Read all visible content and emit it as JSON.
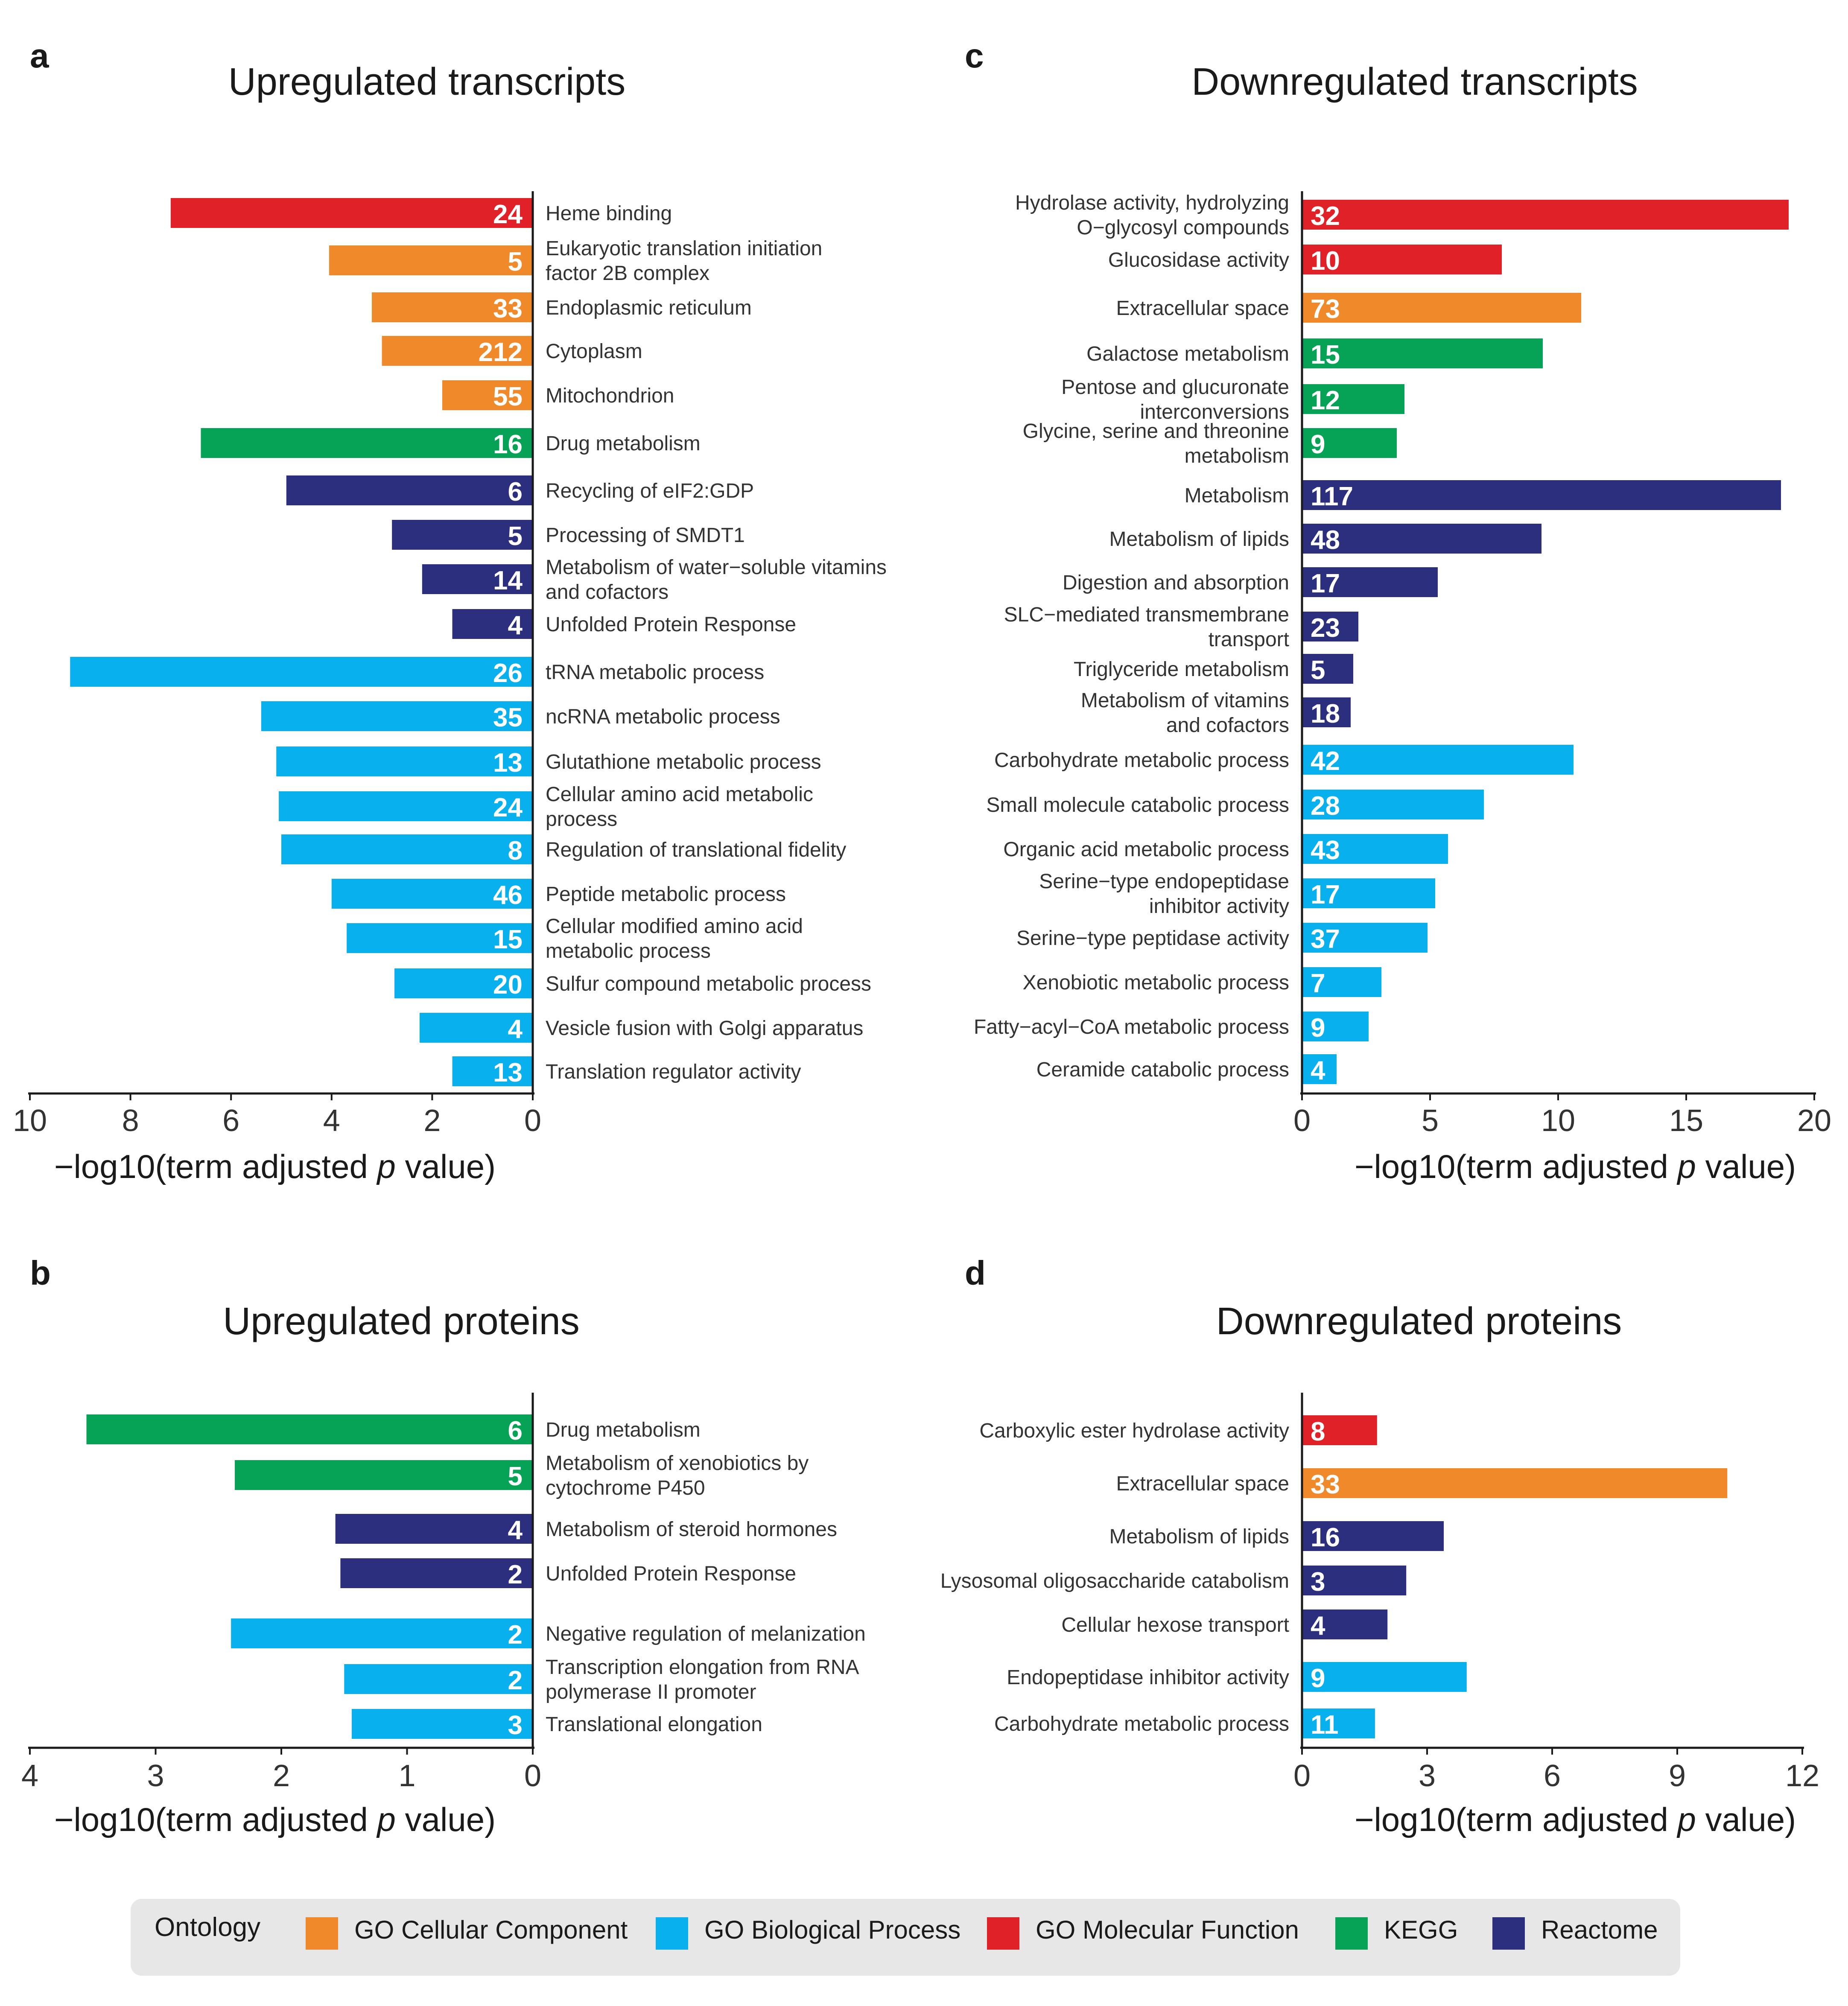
{
  "colors": {
    "GO Cellular Component": "#f0892a",
    "GO Biological Process": "#08b0ed",
    "GO Molecular Function": "#e02128",
    "KEGG": "#06a356",
    "Reactome": "#2c2e7e"
  },
  "legend": {
    "title": "Ontology",
    "items": [
      {
        "label": "GO Cellular Component",
        "color": "#f0892a"
      },
      {
        "label": "GO Biological Process",
        "color": "#08b0ed"
      },
      {
        "label": "GO Molecular Function",
        "color": "#e02128"
      },
      {
        "label": "KEGG",
        "color": "#06a356"
      },
      {
        "label": "Reactome",
        "color": "#2c2e7e"
      }
    ]
  },
  "chart_data": [
    {
      "panel": "a",
      "type": "bar",
      "orientation": "horizontal",
      "direction": "left",
      "title": "Upregulated transcripts",
      "xlabel_prefix": "−log10(term adjusted ",
      "xlabel_italic": "p",
      "xlabel_suffix": " value)",
      "xlim": [
        0,
        10
      ],
      "xticks": [
        10,
        8,
        6,
        4,
        2,
        0
      ],
      "bars": [
        {
          "lines": [
            "Heme binding"
          ],
          "value": 7.2,
          "count": "24",
          "ontology": "GO Molecular Function"
        },
        {
          "lines": [
            "Eukaryotic translation initiation",
            "factor 2B complex"
          ],
          "value": 4.05,
          "count": "5",
          "ontology": "GO Cellular Component"
        },
        {
          "lines": [
            "Endoplasmic reticulum"
          ],
          "value": 3.2,
          "count": "33",
          "ontology": "GO Cellular Component"
        },
        {
          "lines": [
            "Cytoplasm"
          ],
          "value": 3.0,
          "count": "212",
          "ontology": "GO Cellular Component"
        },
        {
          "lines": [
            "Mitochondrion"
          ],
          "value": 1.8,
          "count": "55",
          "ontology": "GO Cellular Component"
        },
        {
          "lines": [
            "Drug metabolism"
          ],
          "value": 6.6,
          "count": "16",
          "ontology": "KEGG"
        },
        {
          "lines": [
            "Recycling of eIF2:GDP"
          ],
          "value": 4.9,
          "count": "6",
          "ontology": "Reactome"
        },
        {
          "lines": [
            "Processing of SMDT1"
          ],
          "value": 2.8,
          "count": "5",
          "ontology": "Reactome"
        },
        {
          "lines": [
            "Metabolism of water−soluble vitamins",
            "and cofactors"
          ],
          "value": 2.2,
          "count": "14",
          "ontology": "Reactome"
        },
        {
          "lines": [
            "Unfolded Protein Response"
          ],
          "value": 1.6,
          "count": "4",
          "ontology": "Reactome"
        },
        {
          "lines": [
            "tRNA metabolic process"
          ],
          "value": 9.2,
          "count": "26",
          "ontology": "GO Biological Process"
        },
        {
          "lines": [
            "ncRNA metabolic process"
          ],
          "value": 5.4,
          "count": "35",
          "ontology": "GO Biological Process"
        },
        {
          "lines": [
            "Glutathione metabolic process"
          ],
          "value": 5.1,
          "count": "13",
          "ontology": "GO Biological Process"
        },
        {
          "lines": [
            "Cellular amino acid metabolic",
            "process"
          ],
          "value": 5.05,
          "count": "24",
          "ontology": "GO Biological Process"
        },
        {
          "lines": [
            "Regulation of translational fidelity"
          ],
          "value": 5.0,
          "count": "8",
          "ontology": "GO Biological Process"
        },
        {
          "lines": [
            "Peptide metabolic process"
          ],
          "value": 4.0,
          "count": "46",
          "ontology": "GO Biological Process"
        },
        {
          "lines": [
            "Cellular modified amino acid",
            "metabolic process"
          ],
          "value": 3.7,
          "count": "15",
          "ontology": "GO Biological Process"
        },
        {
          "lines": [
            "Sulfur compound metabolic process"
          ],
          "value": 2.75,
          "count": "20",
          "ontology": "GO Biological Process"
        },
        {
          "lines": [
            "Vesicle fusion with Golgi apparatus"
          ],
          "value": 2.25,
          "count": "4",
          "ontology": "GO Biological Process"
        },
        {
          "lines": [
            "Translation regulator activity"
          ],
          "value": 1.6,
          "count": "13",
          "ontology": "GO Biological Process"
        }
      ]
    },
    {
      "panel": "c",
      "type": "bar",
      "orientation": "horizontal",
      "direction": "right",
      "title": "Downregulated transcripts",
      "xlabel_prefix": "−log10(term adjusted ",
      "xlabel_italic": "p",
      "xlabel_suffix": " value)",
      "xlim": [
        0,
        20
      ],
      "xticks": [
        0,
        5,
        10,
        15,
        20
      ],
      "bars": [
        {
          "lines": [
            "Hydrolase activity, hydrolyzing",
            "O−glycosyl compounds"
          ],
          "value": 19.0,
          "count": "32",
          "ontology": "GO Molecular Function"
        },
        {
          "lines": [
            "Glucosidase activity"
          ],
          "value": 7.8,
          "count": "10",
          "ontology": "GO Molecular Function"
        },
        {
          "lines": [
            "Extracellular space"
          ],
          "value": 10.9,
          "count": "73",
          "ontology": "GO Cellular Component"
        },
        {
          "lines": [
            "Galactose metabolism"
          ],
          "value": 9.4,
          "count": "15",
          "ontology": "KEGG"
        },
        {
          "lines": [
            "Pentose and glucuronate",
            "interconversions"
          ],
          "value": 4.0,
          "count": "12",
          "ontology": "KEGG"
        },
        {
          "lines": [
            "Glycine, serine and threonine",
            "metabolism"
          ],
          "value": 3.7,
          "count": "9",
          "ontology": "KEGG"
        },
        {
          "lines": [
            "Metabolism"
          ],
          "value": 18.7,
          "count": "117",
          "ontology": "Reactome"
        },
        {
          "lines": [
            "Metabolism of lipids"
          ],
          "value": 9.35,
          "count": "48",
          "ontology": "Reactome"
        },
        {
          "lines": [
            "Digestion and absorption"
          ],
          "value": 5.3,
          "count": "17",
          "ontology": "Reactome"
        },
        {
          "lines": [
            "SLC−mediated transmembrane",
            "transport"
          ],
          "value": 2.2,
          "count": "23",
          "ontology": "Reactome"
        },
        {
          "lines": [
            "Triglyceride metabolism"
          ],
          "value": 2.0,
          "count": "5",
          "ontology": "Reactome"
        },
        {
          "lines": [
            "Metabolism of vitamins",
            "and cofactors"
          ],
          "value": 1.9,
          "count": "18",
          "ontology": "Reactome"
        },
        {
          "lines": [
            "Carbohydrate metabolic process"
          ],
          "value": 10.6,
          "count": "42",
          "ontology": "GO Biological Process"
        },
        {
          "lines": [
            "Small molecule catabolic process"
          ],
          "value": 7.1,
          "count": "28",
          "ontology": "GO Biological Process"
        },
        {
          "lines": [
            "Organic acid metabolic process"
          ],
          "value": 5.7,
          "count": "43",
          "ontology": "GO Biological Process"
        },
        {
          "lines": [
            "Serine−type endopeptidase",
            "inhibitor activity"
          ],
          "value": 5.2,
          "count": "17",
          "ontology": "GO Biological Process"
        },
        {
          "lines": [
            "Serine−type peptidase activity"
          ],
          "value": 4.9,
          "count": "37",
          "ontology": "GO Biological Process"
        },
        {
          "lines": [
            "Xenobiotic metabolic process"
          ],
          "value": 3.1,
          "count": "7",
          "ontology": "GO Biological Process"
        },
        {
          "lines": [
            "Fatty−acyl−CoA metabolic process"
          ],
          "value": 2.6,
          "count": "9",
          "ontology": "GO Biological Process"
        },
        {
          "lines": [
            "Ceramide catabolic process"
          ],
          "value": 1.35,
          "count": "4",
          "ontology": "GO Biological Process"
        }
      ]
    },
    {
      "panel": "b",
      "type": "bar",
      "orientation": "horizontal",
      "direction": "left",
      "title": "Upregulated proteins",
      "xlabel_prefix": "−log10(term adjusted ",
      "xlabel_italic": "p",
      "xlabel_suffix": " value)",
      "xlim": [
        0,
        4
      ],
      "xticks": [
        4,
        3,
        2,
        1,
        0
      ],
      "bars": [
        {
          "lines": [
            "Drug metabolism"
          ],
          "value": 3.55,
          "count": "6",
          "ontology": "KEGG"
        },
        {
          "lines": [
            "Metabolism of xenobiotics by",
            "cytochrome P450"
          ],
          "value": 2.37,
          "count": "5",
          "ontology": "KEGG"
        },
        {
          "lines": [
            "Metabolism of steroid hormones"
          ],
          "value": 1.57,
          "count": "4",
          "ontology": "Reactome"
        },
        {
          "lines": [
            "Unfolded Protein Response"
          ],
          "value": 1.53,
          "count": "2",
          "ontology": "Reactome"
        },
        {
          "lines": [
            "Negative regulation of melanization"
          ],
          "value": 2.4,
          "count": "2",
          "ontology": "GO Biological Process"
        },
        {
          "lines": [
            "Transcription elongation from RNA",
            "polymerase II promoter"
          ],
          "value": 1.5,
          "count": "2",
          "ontology": "GO Biological Process"
        },
        {
          "lines": [
            "Translational elongation"
          ],
          "value": 1.44,
          "count": "3",
          "ontology": "GO Biological Process"
        }
      ]
    },
    {
      "panel": "d",
      "type": "bar",
      "orientation": "horizontal",
      "direction": "right",
      "title": "Downregulated proteins",
      "xlabel_prefix": "−log10(term adjusted ",
      "xlabel_italic": "p",
      "xlabel_suffix": " value)",
      "xlim": [
        0,
        12
      ],
      "xticks": [
        0,
        3,
        6,
        9,
        12
      ],
      "bars": [
        {
          "lines": [
            "Carboxylic ester hydrolase activity"
          ],
          "value": 1.8,
          "count": "8",
          "ontology": "GO Molecular Function"
        },
        {
          "lines": [
            "Extracellular space"
          ],
          "value": 10.2,
          "count": "33",
          "ontology": "GO Cellular Component"
        },
        {
          "lines": [
            "Metabolism of lipids"
          ],
          "value": 3.4,
          "count": "16",
          "ontology": "Reactome"
        },
        {
          "lines": [
            "Lysosomal oligosaccharide catabolism"
          ],
          "value": 2.5,
          "count": "3",
          "ontology": "Reactome"
        },
        {
          "lines": [
            "Cellular hexose transport"
          ],
          "value": 2.05,
          "count": "4",
          "ontology": "Reactome"
        },
        {
          "lines": [
            "Endopeptidase inhibitor activity"
          ],
          "value": 3.95,
          "count": "9",
          "ontology": "GO Biological Process"
        },
        {
          "lines": [
            "Carbohydrate metabolic process"
          ],
          "value": 1.75,
          "count": "11",
          "ontology": "GO Biological Process"
        }
      ]
    }
  ]
}
